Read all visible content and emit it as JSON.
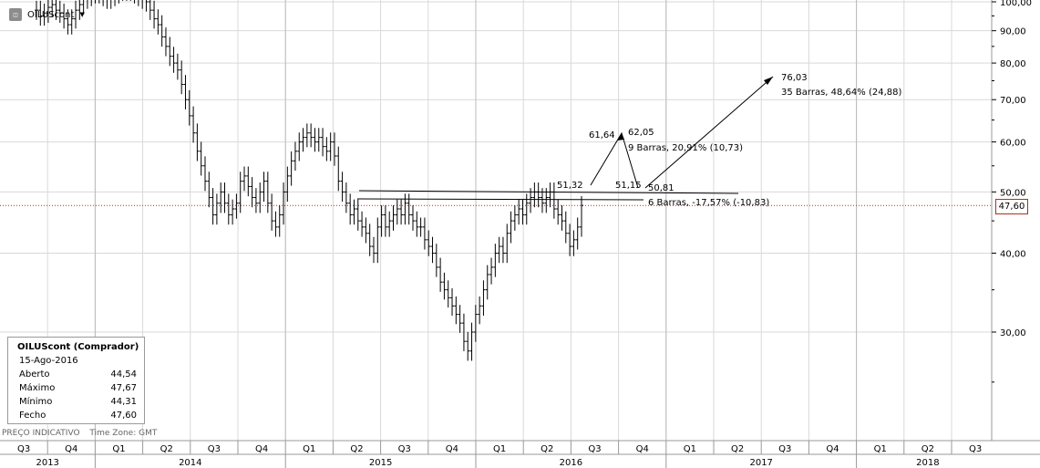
{
  "instrument": {
    "symbol": "OILUScont",
    "icon": "instrument-icon",
    "dropdown_icon": "chevron-down-icon"
  },
  "info_box": {
    "title": "OILUScont (Comprador)",
    "date": "15-Ago-2016",
    "rows": [
      {
        "label": "Aberto",
        "value": "44,54"
      },
      {
        "label": "Máximo",
        "value": "47,67"
      },
      {
        "label": "Mínimo",
        "value": "44,31"
      },
      {
        "label": "Fecho",
        "value": "47,60"
      }
    ]
  },
  "footer": {
    "note": "PREÇO INDICATIVO",
    "timezone": "Time Zone: GMT"
  },
  "last_price_label": "47,60",
  "colors": {
    "bars": "#000000",
    "grid": "#d9d9d9",
    "last_price_line": "#b03020",
    "axis_bg": "#ffffff"
  },
  "chart_data": {
    "type": "ohlc",
    "scale": "log",
    "ylim": [
      20,
      100
    ],
    "y_ticks": [
      "30,00",
      "40,00",
      "50,00",
      "60,00",
      "70,00",
      "80,00",
      "90,00",
      "100,00"
    ],
    "y_tick_values": [
      30,
      40,
      50,
      60,
      70,
      80,
      90,
      100
    ],
    "x_quarters": [
      "Q3",
      "Q4",
      "Q1",
      "Q2",
      "Q3",
      "Q4",
      "Q1",
      "Q2",
      "Q3",
      "Q4",
      "Q1",
      "Q2",
      "Q3",
      "Q4",
      "Q1",
      "Q2",
      "Q3",
      "Q4",
      "Q1",
      "Q2",
      "Q3"
    ],
    "x_years": [
      "2013",
      "2014",
      "2015",
      "2016",
      "2017",
      "2018"
    ],
    "last_price": 47.6,
    "annotations": [
      {
        "text": "76,03",
        "value": 76.03
      },
      {
        "text": "35 Barras, 48,64% (24,88)"
      },
      {
        "text": "61,64",
        "value": 61.64
      },
      {
        "text": "62,05",
        "value": 62.05
      },
      {
        "text": "9 Barras, 20,91% (10,73)"
      },
      {
        "text": "51,32",
        "value": 51.32
      },
      {
        "text": "51,15",
        "value": 51.15
      },
      {
        "text": "50,81",
        "value": 50.81
      },
      {
        "text": "6 Barras, -17,57% (-10,83)"
      }
    ],
    "weekly_closes": [
      97,
      95,
      96,
      98,
      99,
      97,
      96,
      94,
      92,
      94,
      97,
      99,
      101,
      102,
      103,
      104,
      103,
      102,
      101,
      102,
      103,
      104,
      105,
      104,
      104,
      103,
      102,
      101,
      100,
      97,
      94,
      92,
      88,
      85,
      82,
      80,
      78,
      74,
      70,
      66,
      62,
      58,
      55,
      52,
      49,
      46,
      48,
      50,
      48,
      46,
      47,
      48,
      52,
      53,
      51,
      49,
      48,
      50,
      52,
      48,
      45,
      44,
      46,
      50,
      53,
      56,
      58,
      60,
      61,
      62,
      61,
      60,
      61,
      59,
      58,
      60,
      57,
      52,
      50,
      48,
      46,
      47,
      45,
      44,
      43,
      41,
      40,
      44,
      46,
      44,
      45,
      46,
      47,
      46,
      48,
      46,
      45,
      44,
      44,
      42,
      41,
      40,
      38,
      36,
      35,
      34,
      33,
      32,
      31,
      29,
      28,
      30,
      32,
      33,
      35,
      37,
      38,
      40,
      41,
      40,
      43,
      45,
      46,
      47,
      46,
      48,
      49,
      50,
      49,
      48,
      49,
      50,
      47,
      46,
      45,
      43,
      41,
      42,
      44,
      47.6
    ]
  }
}
